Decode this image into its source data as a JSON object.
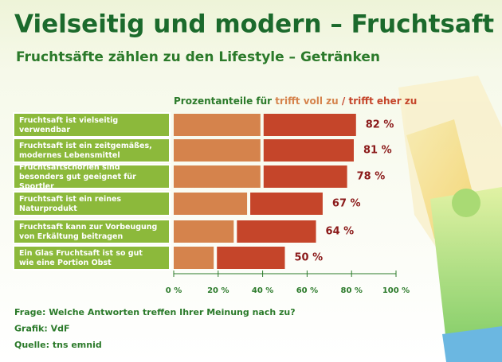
{
  "chart_data": {
    "type": "stacked-bar-horizontal",
    "title": "Vielseitig und modern – Fruchtsaft",
    "subtitle": "Fruchtsäfte zählen zu den Lifestyle – Getränken",
    "legend_prefix": "Prozentanteile für",
    "legend_separator": "/",
    "categories": [
      "Fruchtsaft ist vielseitig verwendbar",
      "Fruchtsaft ist ein zeitgemäßes, modernes Lebensmittel",
      "Fruchtsaftschorlen sind besonders gut geeignet für Sportler",
      "Fruchtsaft ist ein reines Naturprodukt",
      "Fruchtsaft kann zur Vorbeugung von Erkältung beitragen",
      "Ein Glas Fruchtsaft ist so gut wie eine Portion Obst"
    ],
    "series": [
      {
        "name": "trifft voll zu",
        "color": "#d5834c",
        "values": [
          39,
          39,
          39,
          33,
          27,
          18
        ]
      },
      {
        "name": "trifft eher zu",
        "color": "#c5452a",
        "values": [
          43,
          42,
          39,
          34,
          37,
          32
        ]
      }
    ],
    "totals": [
      82,
      81,
      78,
      67,
      64,
      50
    ],
    "total_labels": [
      "82 %",
      "81 %",
      "78 %",
      "67 %",
      "64 %",
      "50 %"
    ],
    "xlim": [
      0,
      100
    ],
    "xticks": [
      {
        "value": 0,
        "label": "0 %"
      },
      {
        "value": 20,
        "label": "20 %"
      },
      {
        "value": 40,
        "label": "40 %"
      },
      {
        "value": 60,
        "label": "60 %"
      },
      {
        "value": 80,
        "label": "80 %"
      },
      {
        "value": 100,
        "label": "100 %"
      }
    ],
    "notes": [
      "Frage: Welche Antworten treffen Ihrer Meinung nach zu?",
      "Grafik: VdF",
      "Quelle: tns emnid"
    ]
  }
}
